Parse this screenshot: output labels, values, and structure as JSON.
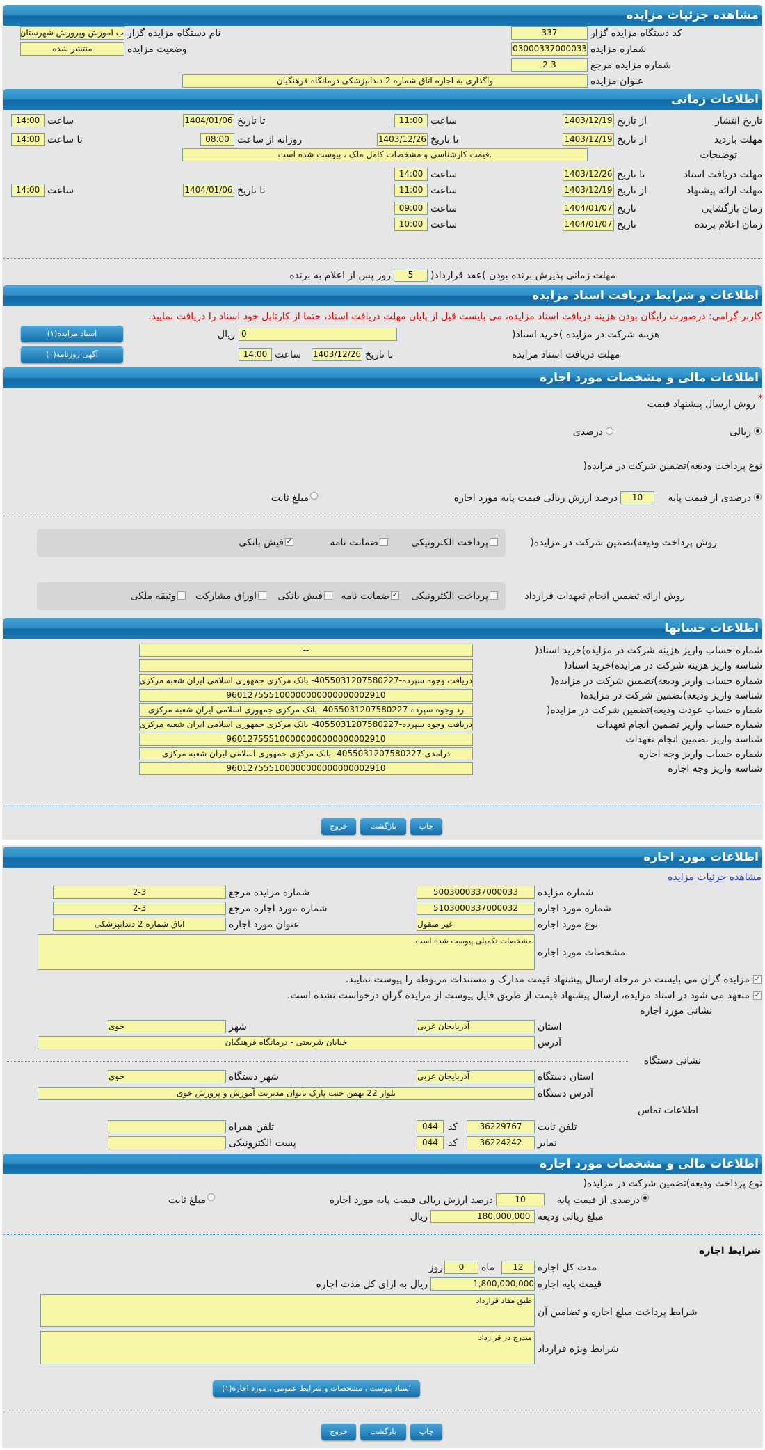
{
  "colors": {
    "header": "#1a78b6",
    "field": "#f7f5a6",
    "panel": "#e6e6e6",
    "warning": "#e00000",
    "link": "#1a2fd0"
  },
  "s1": {
    "title": "مشاهده جزئیات مزایده",
    "code_label": "کد دستگاه مزایده گزار",
    "code": "337",
    "name_label": "نام دستگاه مزایده گزار",
    "name": "ب اموزش وپرورش شهرستان",
    "no_label": "شماره مزایده",
    "no": "5003000337000033",
    "status_label": "وضعیت مزایده",
    "status": "منتشر شده",
    "ref_label": "شماره مزایده مرجع",
    "ref": "2-3",
    "subj_label": "عنوان مزایده",
    "subj": "واگذاری به اجاره اتاق شماره 2 دندانپزشکی درمانگاه فرهنگیان"
  },
  "s2": {
    "title": "اطلاعات زمانی",
    "from_date": "از تاریخ",
    "to_date": "تا تاریخ",
    "date": "تاریخ",
    "hour": "ساعت",
    "to_hour": "تا ساعت",
    "daily_from": "روزانه از ساعت",
    "pub_label": "تاریخ انتشار",
    "pub_from": "1403/12/19",
    "pub_from_t": "11:00",
    "pub_to": "1404/01/06",
    "pub_to_t": "14:00",
    "visit_label": "مهلت بازدید",
    "visit_from": "1403/12/19",
    "visit_to": "1403/12/26",
    "visit_daily": "08:00",
    "visit_to_t": "14:00",
    "desc_label": "توضیحات",
    "desc": ".قیمت کارشناسی و مشخصات کامل ملک ، پیوست شده است",
    "doc_label": "مهلت دریافت اسناد",
    "doc_to": "1403/12/26",
    "doc_to_t": "14:00",
    "offer_label": "مهلت ارائه پیشنهاد",
    "offer_from": "1403/12/19",
    "offer_from_t": "11:00",
    "offer_to": "1404/01/06",
    "offer_to_t": "14:00",
    "open_label": "زمان بازگشایی",
    "open_d": "1404/01/07",
    "open_t": "09:00",
    "win_label": "زمان اعلام برنده",
    "win_d": "1404/01/07",
    "win_t": "10:00",
    "accept_label": "مهلت زمانی پذیرش برنده بودن )عقد قرارداد(",
    "accept_days": "5",
    "accept_suffix": "روز پس از اعلام به برنده"
  },
  "s3": {
    "title": "اطلاعات و شرایط دریافت اسناد مزایده",
    "warning": "کاربر گرامی: درصورت رایگان بودن هزینه دریافت اسناد مزایده، می بایست قبل از پایان مهلت دریافت اسناد، حتما از کارتابل خود اسناد را دریافت نمایید.",
    "fee_label": "هزینه شرکت در مزایده )خرید اسناد(",
    "fee": "0",
    "rial": "ریال",
    "deadline_label": "مهلت دریافت اسناد مزایده",
    "to_date": "تا تاریخ",
    "deadline_d": "1403/12/26",
    "hour": "ساعت",
    "deadline_t": "14:00",
    "docs_btn": "اسناد مزایده(۱)",
    "news_btn": "آگهی روزنامه(۰)"
  },
  "s4": {
    "title": "اطلاعات مالی و مشخصات مورد اجاره",
    "price_method_label": "روش ارسال پیشنهاد قیمت",
    "required": "*",
    "opt_rial": "ریالی",
    "opt_percent": "درصدی",
    "price_method_selected": "ریالی",
    "deposit_type_label": "نوع پرداخت ودیعه)تضمین شرکت در مزایده(",
    "dep_percent": "درصدی از قیمت پایه",
    "dep_value": "10",
    "dep_suffix": "درصد ارزش ریالی قیمت پایه مورد اجاره",
    "dep_fixed": "مبلغ ثابت",
    "deposit_selected": "درصدی از قیمت پایه",
    "pay_label": "روش پرداخت ودیعه)تضمین شرکت در مزایده(",
    "pay_opts": [
      {
        "label": "پرداخت الکترونیکی",
        "checked": false
      },
      {
        "label": "ضمانت نامه",
        "checked": false
      },
      {
        "label": "فیش بانکی",
        "checked": true
      }
    ],
    "guar_label": "روش ارائه تضمین انجام تعهدات قرارداد",
    "guar_opts": [
      {
        "label": "پرداخت الکترونیکی",
        "checked": false
      },
      {
        "label": "ضمانت نامه",
        "checked": true
      },
      {
        "label": "فیش بانکی",
        "checked": false
      },
      {
        "label": "اوراق مشارکت",
        "checked": false
      },
      {
        "label": "وثیقه ملکی",
        "checked": false
      }
    ]
  },
  "s5": {
    "title": "اطلاعات حسابها",
    "rows": [
      {
        "label": "شماره حساب واریز هزینه شرکت در مزایده)خرید اسناد(",
        "value": "--"
      },
      {
        "label": "شناسه واریز هزینه شرکت در مزایده)خرید اسناد(",
        "value": ""
      },
      {
        "label": "شماره حساب واریز ودیعه)تضمین شرکت در مزایده(",
        "value": "دریافت وجوه سپرده-4055031207580227- بانک مرکزی جمهوری اسلامی ایران شعبه مرکزی"
      },
      {
        "label": "شناسه واریز ودیعه)تضمین شرکت در مزایده(",
        "value": "960127555100000000000000002910"
      },
      {
        "label": "شماره حساب عودت ودیعه)تضمین شرکت در مزایده(",
        "value": "رد وجوه سپرده-4055031207580227- بانک مرکزی جمهوری اسلامی ایران شعبه مرکزی"
      },
      {
        "label": "شماره حساب واریز تضمین انجام تعهدات",
        "value": "دریافت وجوه سپرده-4055031207580227- بانک مرکزی جمهوری اسلامی ایران شعبه مرکزی"
      },
      {
        "label": "شناسه واریز تضمین انجام تعهدات",
        "value": "960127555100000000000000002910"
      },
      {
        "label": "شماره حساب واریز وجه اجاره",
        "value": "درآمدی-4055031207580227- بانک مرکزی جمهوری اسلامی ایران شعبه مرکزی"
      },
      {
        "label": "شناسه واریز وجه اجاره",
        "value": "960127555100000000000000002910"
      }
    ]
  },
  "buttons": {
    "print": "چاپ",
    "back": "بازگشت",
    "exit": "خروج"
  },
  "s6": {
    "title": "اطلاعات مورد اجاره",
    "link": "مشاهده جزئیات مزایده",
    "no_label": "شماره مزایده",
    "no": "5003000337000033",
    "ref_label": "شماره مزایده مرجع",
    "ref": "2-3",
    "item_no_label": "شماره مورد اجاره",
    "item_no": "5103000337000032",
    "item_ref_label": "شماره مورد اجاره مرجع",
    "item_ref": "2-3",
    "type_label": "نوع مورد اجاره",
    "type": "غیر منقول",
    "item_title_label": "عنوان مورد اجاره",
    "item_title": "اتاق شماره 2 دندانپزشکی",
    "spec_label": "مشخصات مورد اجاره",
    "spec": "مشخصات تکمیلی پیوست شده است.",
    "chk1": "مزایده گران می بایست در مرحله ارسال پیشنهاد قیمت مدارک و مستندات مربوطه را پیوست نمایند.",
    "chk2": "متعهد می شود در اسناد مزایده، ارسال پیشنهاد قیمت از طریق فایل پیوست از مزایده گران درخواست نشده است.",
    "addr_title": "نشانی مورد اجاره",
    "province_label": "استان",
    "province": "آذربایجان غربی",
    "city_label": "شهر",
    "city": "خوی",
    "address_label": "آدرس",
    "address": "خیابان شریعتی - درمانگاه فرهنگیان",
    "org_addr_title": "نشانی دستگاه",
    "org_province_label": "استان دستگاه",
    "org_province": "آذربایجان غربی",
    "org_city_label": "شهر دستگاه",
    "org_city": "خوی",
    "org_address_label": "آدرس دستگاه",
    "org_address": "بلوار 22 بهمن جنب پارک بانوان مدیریت آموزش و پرورش خوی",
    "contact_title": "اطلاعات تماس",
    "phone_label": "تلفن ثابت",
    "phone": "36229767",
    "code_label": "کد",
    "phone_code": "044",
    "mobile_label": "تلفن همراه",
    "mobile": "",
    "fax_label": "نمابر",
    "fax": "36224242",
    "fax_code": "044",
    "email_label": "پست الکترونیکی",
    "email": ""
  },
  "s7": {
    "title": "اطلاعات مالی و مشخصات مورد اجاره",
    "deposit_type_label": "نوع پرداخت ودیعه)تضمین شرکت در مزایده(",
    "dep_percent": "درصدی از قیمت پایه",
    "dep_value": "10",
    "dep_suffix": "درصد ارزش ریالی قیمت پایه مورد اجاره",
    "dep_fixed": "مبلغ ثابت",
    "dep_amount_label": "مبلغ ریالی ودیعه",
    "dep_amount": "180,000,000",
    "rial": "ریال",
    "terms_title": "شرایط اجاره",
    "duration_label": "مدت کل اجاره",
    "months": "12",
    "month_unit": "ماه",
    "days": "0",
    "day_unit": "روز",
    "base_label": "قیمت پایه اجاره",
    "base": "1,800,000,000",
    "base_suffix": "ریال به ازای کل مدت اجاره",
    "payment_terms_label": "شرایط پرداخت مبلغ اجاره و تضامین آن",
    "payment_terms": "طبق مفاد قرارداد",
    "special_label": "شرایط ویژه قرارداد",
    "special": "مندرج در قرارداد",
    "attach_btn": "اسناد پیوست ، مشخصات و شرایط عمومی ، مورد اجاره(۱)"
  }
}
